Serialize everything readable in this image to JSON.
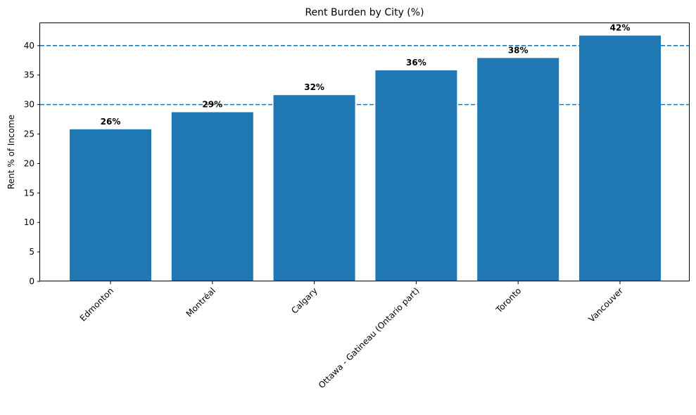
{
  "chart_data": {
    "type": "bar",
    "title": "Rent Burden by City (%)",
    "xlabel": "",
    "ylabel": "Rent % of Income",
    "categories": [
      "Edmonton",
      "Montréal",
      "Calgary",
      "Ottawa - Gatineau (Ontario part)",
      "Toronto",
      "Vancouver"
    ],
    "values": [
      25.8,
      28.7,
      31.6,
      35.8,
      37.9,
      41.7
    ],
    "value_labels": [
      "26%",
      "29%",
      "32%",
      "36%",
      "38%",
      "42%"
    ],
    "ylim": [
      0,
      43.8
    ],
    "yticks": [
      0,
      5,
      10,
      15,
      20,
      25,
      30,
      35,
      40
    ],
    "reference_lines": [
      30,
      40
    ],
    "bar_color": "#1f77b4",
    "reference_line_color": "#1f77b4",
    "grid": false,
    "legend": "none"
  }
}
